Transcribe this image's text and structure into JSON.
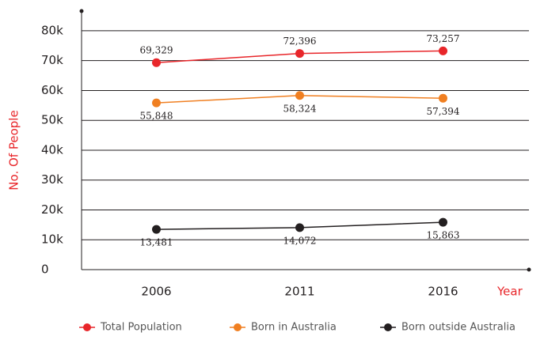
{
  "chart_data": {
    "type": "line",
    "y_label": "No. Of People",
    "x_label": "Year",
    "categories": [
      "2006",
      "2011",
      "2016"
    ],
    "series": [
      {
        "name": "Total Population",
        "color": "#e8262a",
        "values": [
          69329,
          72396,
          73257
        ],
        "value_labels": [
          "69,329",
          "72,396",
          "73,257"
        ]
      },
      {
        "name": "Born in Australia",
        "color": "#f07f21",
        "values": [
          55848,
          58324,
          57394
        ],
        "value_labels": [
          "55,848",
          "58,324",
          "57,394"
        ]
      },
      {
        "name": "Born outside Australia",
        "color": "#231f20",
        "values": [
          13481,
          14072,
          15863
        ],
        "value_labels": [
          "13,481",
          "14,072",
          "15,863"
        ]
      }
    ],
    "ylim": [
      0,
      86600
    ],
    "yticks": [
      0,
      {
        "value": 10000,
        "label": "10k"
      },
      {
        "value": 20000,
        "label": "20k"
      },
      {
        "value": 30000,
        "label": "30k"
      },
      {
        "value": 40000,
        "label": "40k"
      },
      {
        "value": 50000,
        "label": "50k"
      },
      {
        "value": 60000,
        "label": "60k"
      },
      {
        "value": 70000,
        "label": "70k"
      },
      {
        "value": 80000,
        "label": "80k"
      }
    ],
    "grid": true
  }
}
